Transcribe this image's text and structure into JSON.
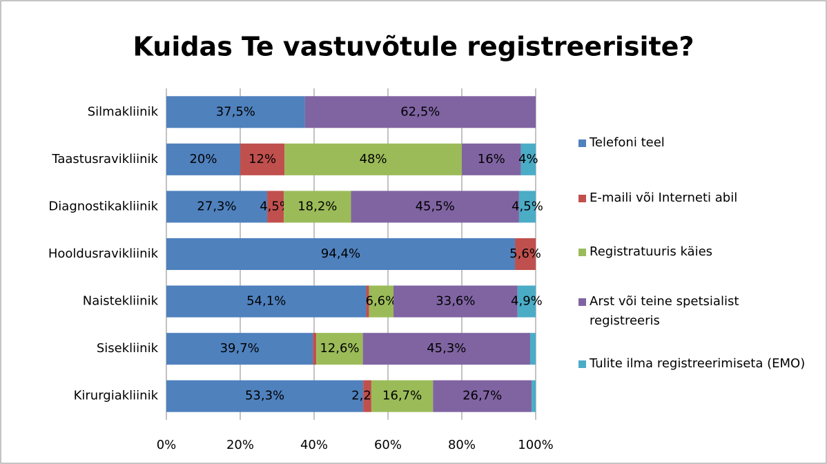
{
  "chart_data": {
    "type": "stacked_barh",
    "title": "Kuidas Te vastuvõtule registreerisite?",
    "categories": [
      "Silmakliinik",
      "Taastusravikliinik",
      "Diagnostikakliinik",
      "Hooldusravikliinik",
      "Naistekliinik",
      "Sisekliinik",
      "Kirurgiakliinik"
    ],
    "series": [
      {
        "name": "Telefoni teel",
        "color": "#4f81bd",
        "values": [
          37.5,
          20,
          27.3,
          94.4,
          54.1,
          39.7,
          53.3
        ],
        "value_labels": [
          "37,5%",
          "20%",
          "27,3%",
          "94,4%",
          "54,1%",
          "39,7%",
          "53,3%"
        ]
      },
      {
        "name": "E-maili või Interneti abil",
        "color": "#c0504d",
        "values": [
          0,
          12,
          4.5,
          5.6,
          0.8,
          0.9,
          2.2
        ],
        "value_labels": [
          null,
          "12%",
          "4,5%",
          "5,6%",
          null,
          null,
          "2,2%"
        ]
      },
      {
        "name": "Registratuuris käies",
        "color": "#9bbb59",
        "values": [
          0,
          48,
          18.2,
          0,
          6.6,
          12.6,
          16.7
        ],
        "value_labels": [
          null,
          "48%",
          "18,2%",
          null,
          "6,6%",
          "12,6%",
          "16,7%"
        ]
      },
      {
        "name": "Arst või teine spetsialist registreeris",
        "color": "#8064a2",
        "values": [
          62.5,
          16,
          45.5,
          0,
          33.6,
          45.3,
          26.7
        ],
        "value_labels": [
          "62,5%",
          "16%",
          "45,5%",
          null,
          "33,6%",
          "45,3%",
          "26,7%"
        ]
      },
      {
        "name": "Tulite ilma registreerimiseta (EMO)",
        "color": "#4bacc6",
        "values": [
          0,
          4,
          4.5,
          0,
          4.9,
          1.5,
          1.1
        ],
        "value_labels": [
          null,
          "4%",
          "4,5%",
          null,
          "4,9%",
          null,
          null
        ]
      }
    ],
    "xlim": [
      0,
      100
    ],
    "xticks": [
      {
        "value": 0,
        "label": "0%"
      },
      {
        "value": 20,
        "label": "20%"
      },
      {
        "value": 40,
        "label": "40%"
      },
      {
        "value": 60,
        "label": "60%"
      },
      {
        "value": 80,
        "label": "80%"
      },
      {
        "value": 100,
        "label": "100%"
      }
    ],
    "grid": true,
    "legend": "right"
  }
}
